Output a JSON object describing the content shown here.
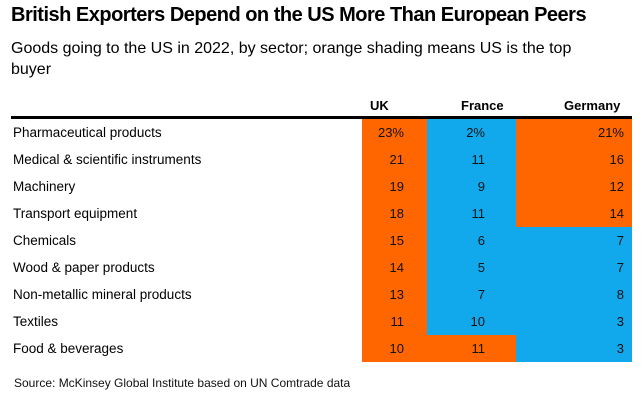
{
  "title": "British Exporters Depend on the US More Than European Peers",
  "subtitle": "Goods going to the US in 2022, by sector; orange shading means US is the top buyer",
  "source": "Source: McKinsey Global Institute based on UN Comtrade data",
  "colors": {
    "us_top_buyer": "#ff6600",
    "other": "#11a8ec"
  },
  "chart_data": {
    "type": "table",
    "title": "British Exporters Depend on the US More Than European Peers",
    "subtitle": "Goods going to the US in 2022, by sector; orange shading means US is the top buyer",
    "columns": [
      "UK",
      "France",
      "Germany"
    ],
    "unit": "%",
    "rows": [
      {
        "sector": "Pharmaceutical products",
        "values": [
          23,
          2,
          21
        ],
        "display": [
          "23%",
          "2%",
          "21%"
        ],
        "us_top_buyer": [
          true,
          false,
          true
        ]
      },
      {
        "sector": "Medical & scientific instruments",
        "values": [
          21,
          11,
          16
        ],
        "display": [
          "21",
          "11",
          "16"
        ],
        "us_top_buyer": [
          true,
          false,
          true
        ]
      },
      {
        "sector": "Machinery",
        "values": [
          19,
          9,
          12
        ],
        "display": [
          "19",
          "9",
          "12"
        ],
        "us_top_buyer": [
          true,
          false,
          true
        ]
      },
      {
        "sector": "Transport equipment",
        "values": [
          18,
          11,
          14
        ],
        "display": [
          "18",
          "11",
          "14"
        ],
        "us_top_buyer": [
          true,
          false,
          true
        ]
      },
      {
        "sector": "Chemicals",
        "values": [
          15,
          6,
          7
        ],
        "display": [
          "15",
          "6",
          "7"
        ],
        "us_top_buyer": [
          true,
          false,
          false
        ]
      },
      {
        "sector": "Wood & paper products",
        "values": [
          14,
          5,
          7
        ],
        "display": [
          "14",
          "5",
          "7"
        ],
        "us_top_buyer": [
          true,
          false,
          false
        ]
      },
      {
        "sector": "Non-metallic mineral products",
        "values": [
          13,
          7,
          8
        ],
        "display": [
          "13",
          "7",
          "8"
        ],
        "us_top_buyer": [
          true,
          false,
          false
        ]
      },
      {
        "sector": "Textiles",
        "values": [
          11,
          10,
          3
        ],
        "display": [
          "11",
          "10",
          "3"
        ],
        "us_top_buyer": [
          true,
          false,
          false
        ]
      },
      {
        "sector": "Food & beverages",
        "values": [
          10,
          11,
          3
        ],
        "display": [
          "10",
          "11",
          "3"
        ],
        "us_top_buyer": [
          true,
          true,
          false
        ]
      }
    ],
    "source": "Source: McKinsey Global Institute based on UN Comtrade data"
  }
}
